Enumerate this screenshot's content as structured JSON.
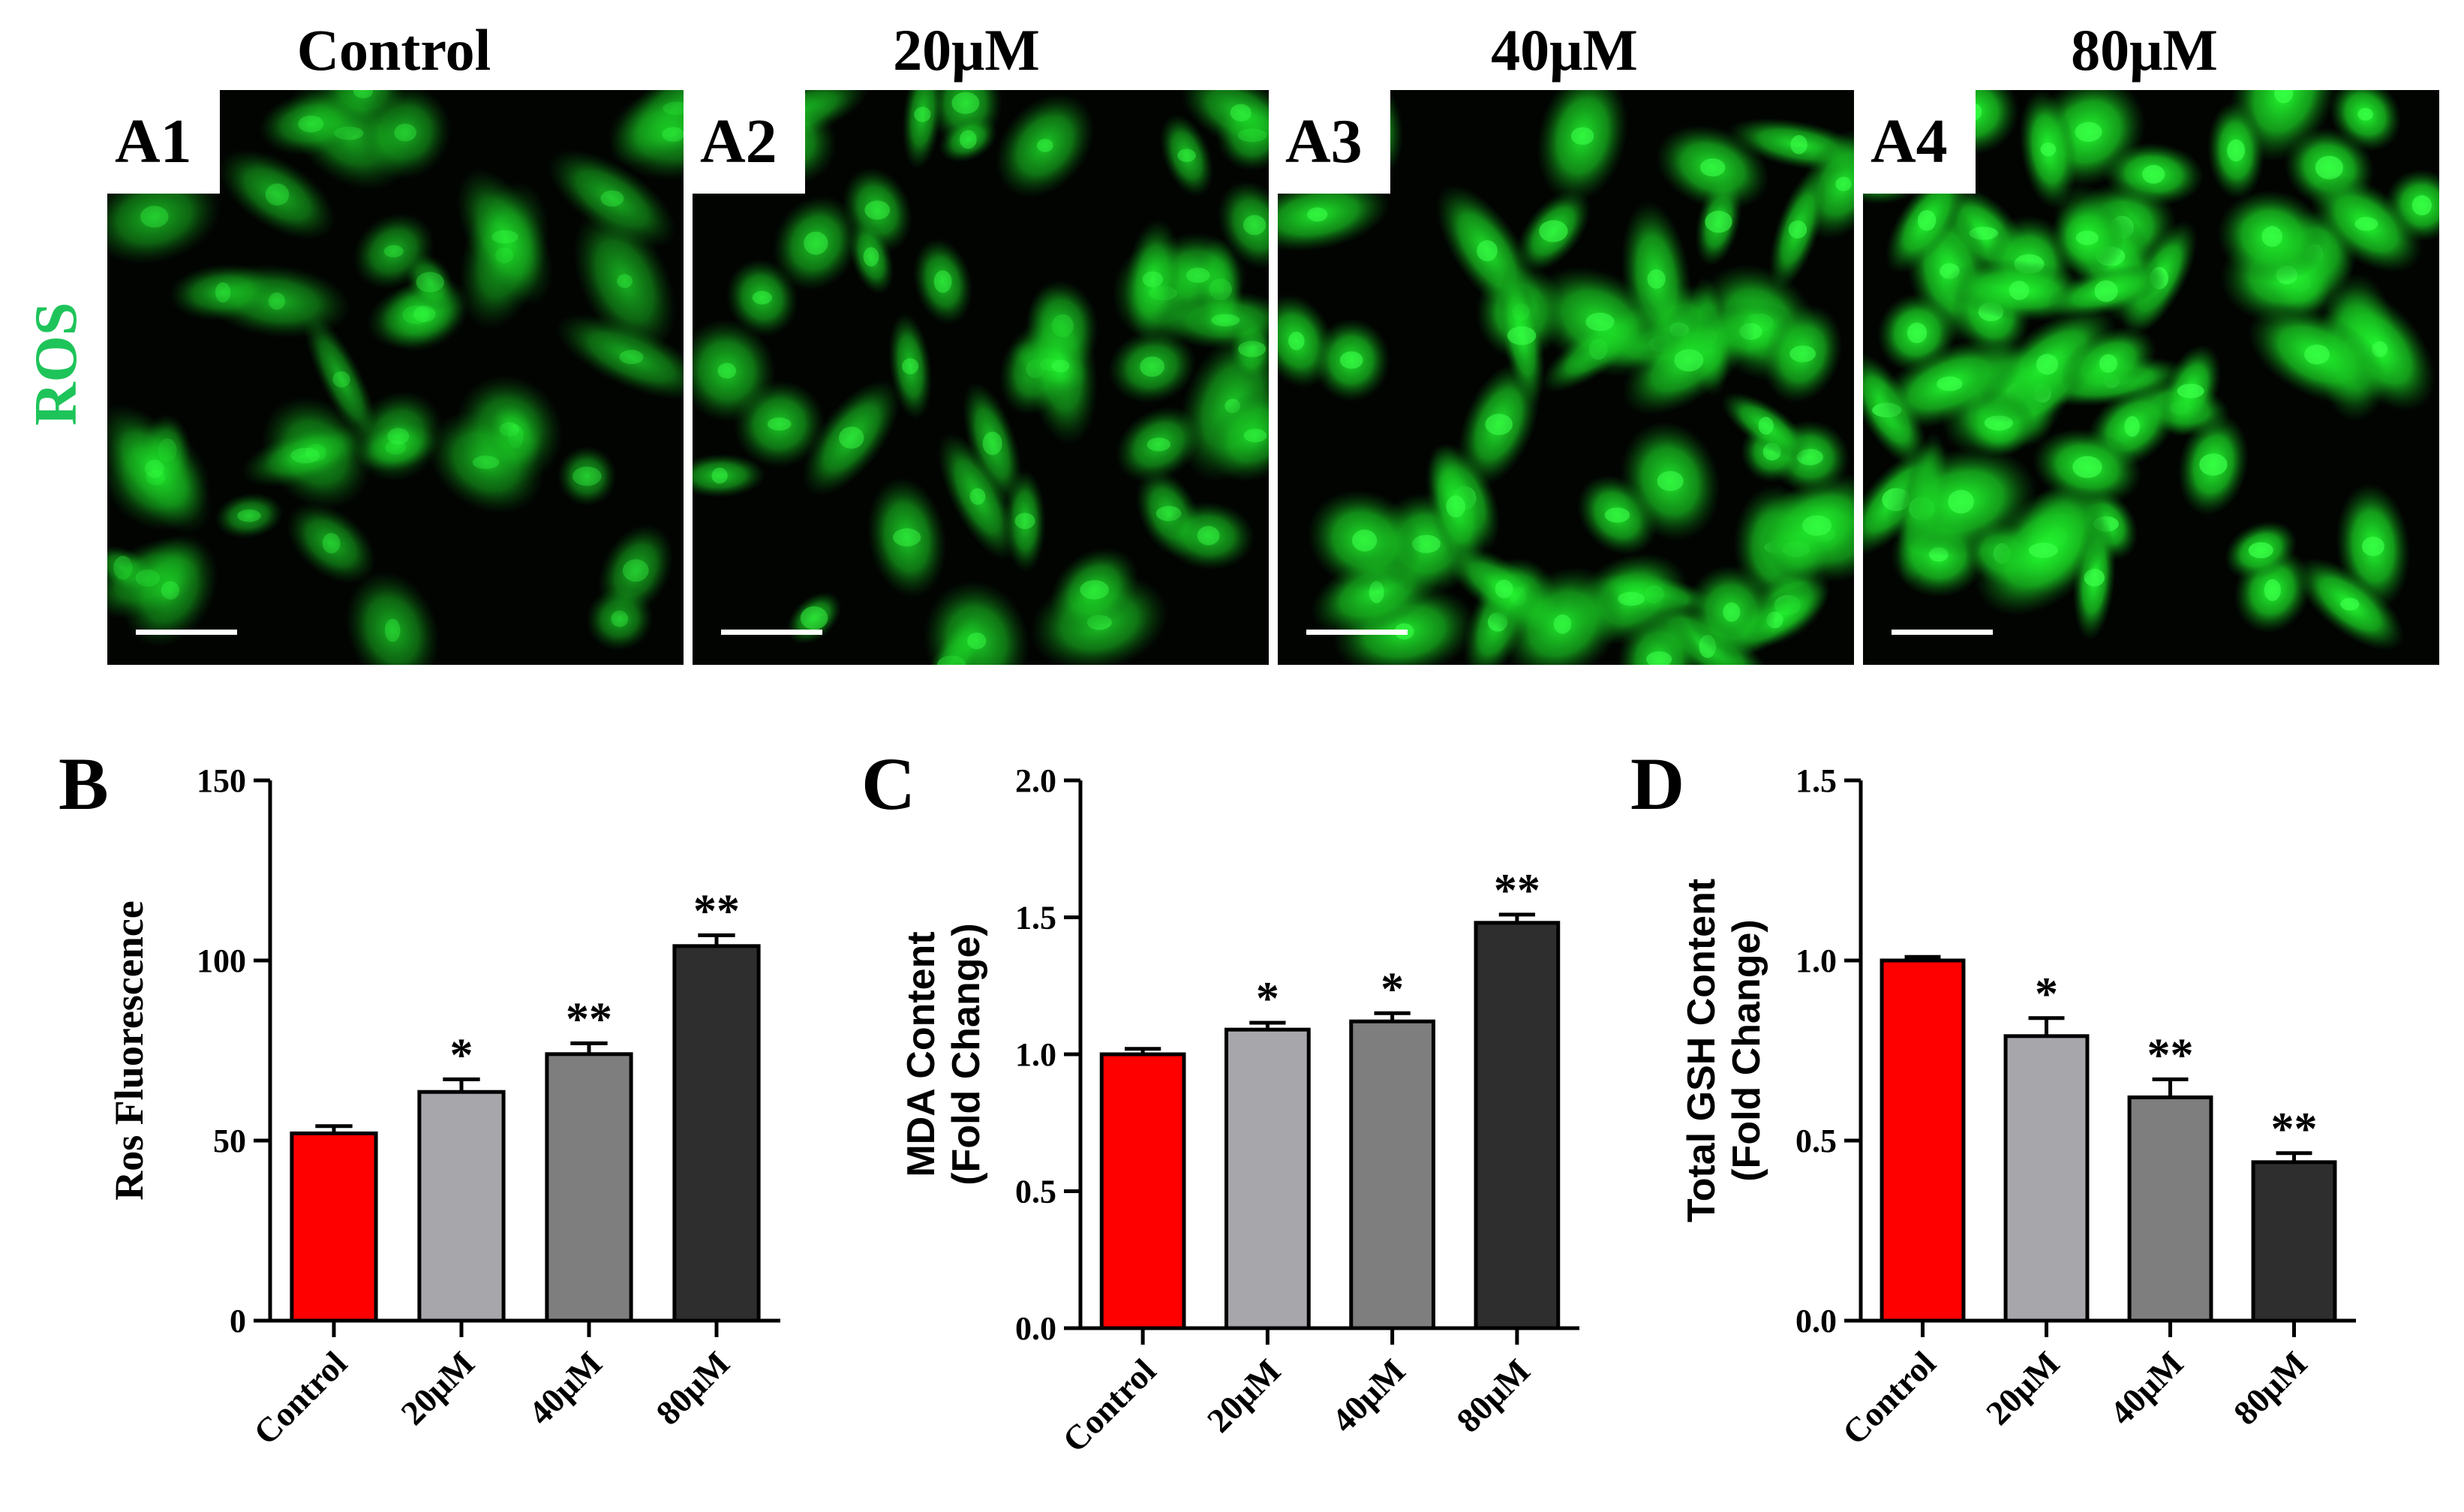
{
  "figure": {
    "row_label": "ROS",
    "row_label_color": "#1ec45a",
    "columns": [
      "Control",
      "20μM",
      "40μM",
      "80μM"
    ],
    "panels": [
      {
        "tag": "A1",
        "intensity": 0.35
      },
      {
        "tag": "A2",
        "intensity": 0.55
      },
      {
        "tag": "A3",
        "intensity": 0.8
      },
      {
        "tag": "A4",
        "intensity": 1.0
      }
    ],
    "panel_letters": [
      "B",
      "C",
      "D"
    ]
  },
  "chart_data": [
    {
      "type": "bar",
      "panel": "B",
      "categories": [
        "Control",
        "20μM",
        "40μM",
        "80μM"
      ],
      "values": [
        52,
        63.5,
        74,
        104
      ],
      "errors": [
        2,
        3.5,
        3,
        3
      ],
      "significance": [
        "",
        "*",
        "**",
        "**"
      ],
      "ylabel": "Ros Fluorescence",
      "ylim": [
        0,
        150
      ],
      "yticks": [
        "0",
        "50",
        "100",
        "150"
      ],
      "colors": [
        "#ff0000",
        "#a6a6ab",
        "#7e7e7e",
        "#2e2e2e"
      ]
    },
    {
      "type": "bar",
      "panel": "C",
      "categories": [
        "Control",
        "20μM",
        "40μM",
        "80μM"
      ],
      "values": [
        1.0,
        1.09,
        1.12,
        1.48
      ],
      "errors": [
        0.02,
        0.025,
        0.03,
        0.03
      ],
      "significance": [
        "",
        "*",
        "*",
        "**"
      ],
      "ylabel": "MDA Content",
      "ylabel2": "(Fold Change)",
      "ylim": [
        0,
        2.0
      ],
      "yticks": [
        "0.0",
        "0.5",
        "1.0",
        "1.5",
        "2.0"
      ],
      "colors": [
        "#ff0000",
        "#a6a6ab",
        "#7e7e7e",
        "#2e2e2e"
      ]
    },
    {
      "type": "bar",
      "panel": "D",
      "categories": [
        "Control",
        "20μM",
        "40μM",
        "80μM"
      ],
      "values": [
        1.0,
        0.79,
        0.62,
        0.44
      ],
      "errors": [
        0.01,
        0.05,
        0.05,
        0.025
      ],
      "significance": [
        "",
        "*",
        "**",
        "**"
      ],
      "ylabel": "Total GSH Content",
      "ylabel2": "(Fold Change)",
      "ylim": [
        0,
        1.5
      ],
      "yticks": [
        "0.0",
        "0.5",
        "1.0",
        "1.5"
      ],
      "colors": [
        "#ff0000",
        "#a6a6ab",
        "#7e7e7e",
        "#2e2e2e"
      ]
    }
  ]
}
